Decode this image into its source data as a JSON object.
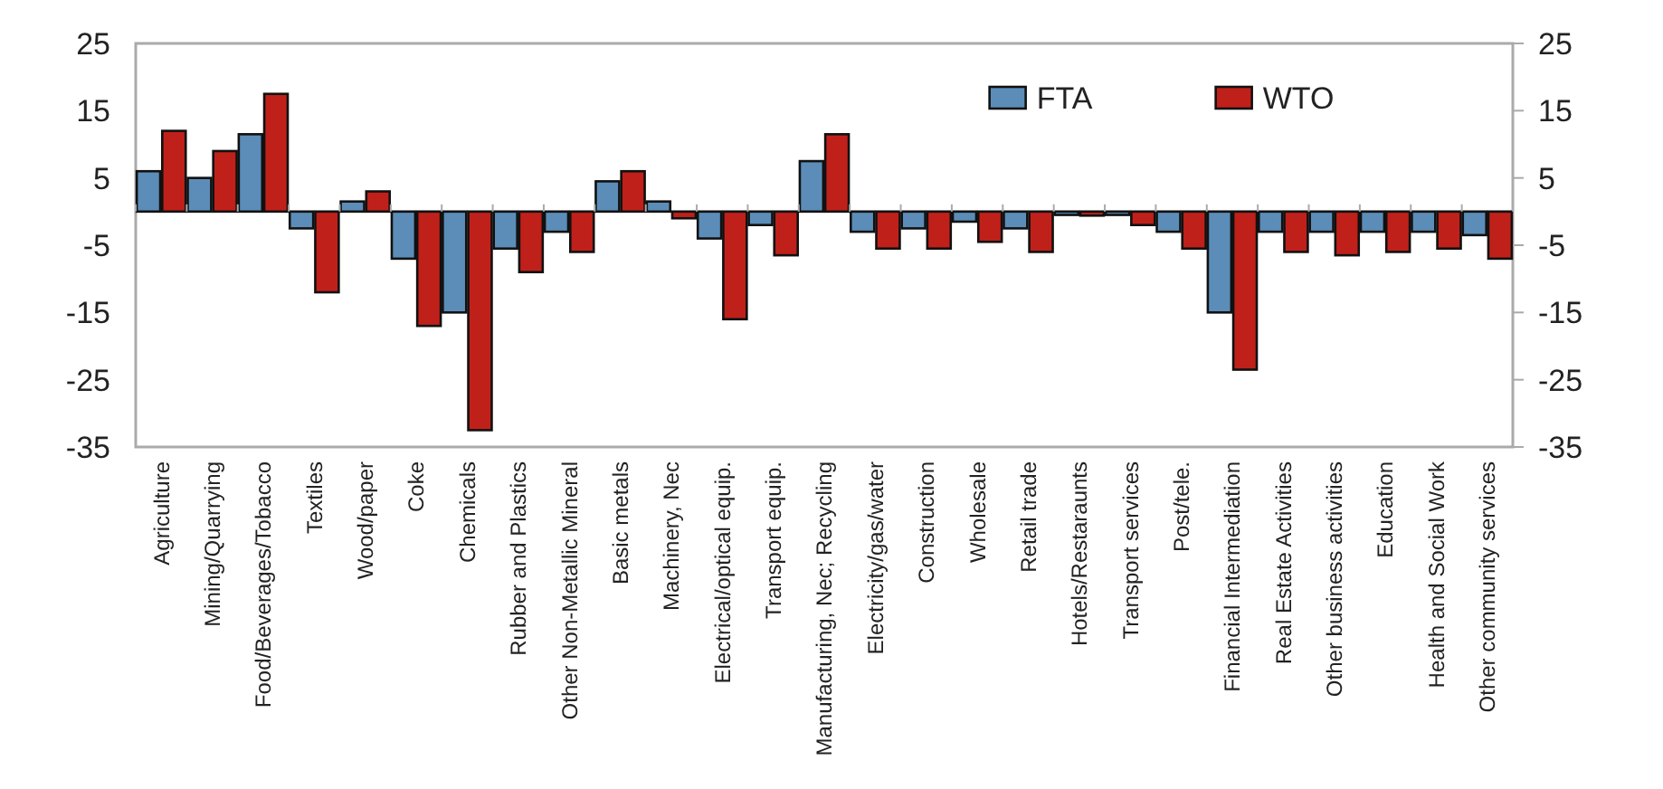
{
  "chart_data": {
    "type": "bar",
    "categories": [
      "Agriculture",
      "Mining/Quarrying",
      "Food/Beverages/Tobacco",
      "Textiles",
      "Wood/paper",
      "Coke",
      "Chemicals",
      "Rubber and Plastics",
      "Other Non-Metallic Mineral",
      "Basic metals",
      "Machinery, Nec",
      "Electrical/optical equip.",
      "Transport equip.",
      "Manufacturing, Nec; Recycling",
      "Electricity/gas/water",
      "Construction",
      "Wholesale",
      "Retail trade",
      "Hotels/Restaraunts",
      "Transport services",
      "Post/tele.",
      "Financial Intermediation",
      "Real Estate Activities",
      "Other business activities",
      "Education",
      "Health and Social Work",
      "Other community services"
    ],
    "series": [
      {
        "name": "FTA",
        "color": "#5b8db8",
        "values": [
          6,
          5,
          11.5,
          -2.5,
          1.5,
          -7,
          -15,
          -5.5,
          -3,
          4.5,
          1.5,
          -4,
          -2,
          7.5,
          -3,
          -2.5,
          -1.5,
          -2.5,
          -0.5,
          -0.5,
          -3,
          -15,
          -3,
          -3,
          -3,
          -3,
          -3.5
        ]
      },
      {
        "name": "WTO",
        "color": "#c0201a",
        "values": [
          12,
          9,
          17.5,
          -12,
          3,
          -17,
          -32.5,
          -9,
          -6,
          6,
          -1,
          -16,
          -6.5,
          11.5,
          -5.5,
          -5.5,
          -4.5,
          -6,
          -0.6,
          -2,
          -5.5,
          -23.5,
          -6,
          -6.5,
          -6,
          -5.5,
          -7
        ]
      }
    ],
    "ylim": [
      -35,
      25
    ],
    "yticks": [
      -35,
      -25,
      -15,
      -5,
      5,
      15,
      25
    ],
    "y2lim": [
      -35,
      25
    ],
    "y2ticks": [
      -35,
      -25,
      -15,
      -5,
      5,
      15,
      25
    ],
    "grid": false,
    "legend": "top right"
  }
}
